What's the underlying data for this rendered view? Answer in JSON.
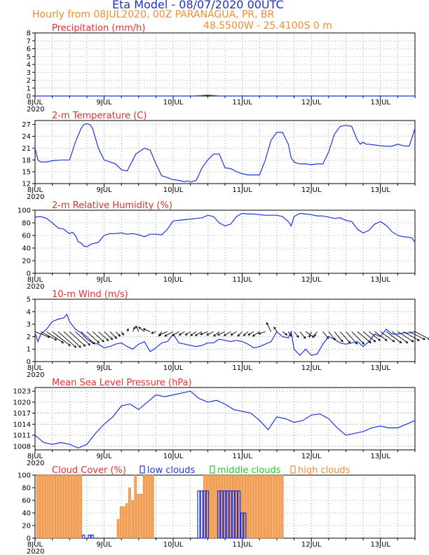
{
  "header": {
    "title": "Eta Model - 08/07/2020 00UTC",
    "subtitle": "Hourly from 08JUL2020, 00Z  PARANAGUA, PR, BR",
    "location": "48.5500W - 25.4100S       0  m"
  },
  "colors": {
    "title": "#2030c0",
    "orange": "#f08c30",
    "red": "#e03030",
    "blue": "#1a35e0",
    "black": "#000000"
  },
  "x_ticks": [
    "8JUL",
    "9JUL",
    "10JUL",
    "11JUL",
    "12JUL",
    "13JUL"
  ],
  "x_year": "2020",
  "chart_data": [
    {
      "type": "line",
      "title": "Precipitation (mm/h)",
      "ylim": [
        0,
        8
      ],
      "yticks": [
        "0",
        "1",
        "2",
        "3",
        "4",
        "5",
        "6",
        "7",
        "8"
      ],
      "x": [
        0,
        12,
        24,
        48,
        55,
        58,
        60,
        62,
        64,
        66,
        72,
        96,
        120,
        132
      ],
      "values": [
        0,
        0,
        0,
        0,
        0,
        0.05,
        0.12,
        0.05,
        0,
        0,
        0,
        0,
        0,
        0
      ]
    },
    {
      "type": "line",
      "title": "2-m Temperature (C)",
      "ylim": [
        12,
        28
      ],
      "yticks": [
        "12",
        "15",
        "18",
        "21",
        "24",
        "27"
      ],
      "x": [
        0,
        1,
        2,
        4,
        6,
        9,
        12,
        14,
        16,
        17,
        18,
        19,
        20,
        22,
        24,
        26,
        28,
        30,
        32,
        34,
        35,
        36,
        38,
        40,
        42,
        44,
        45,
        46,
        48,
        50,
        52,
        53,
        54,
        56,
        58,
        60,
        62,
        64,
        66,
        68,
        70,
        72,
        74,
        76,
        78,
        80,
        82,
        84,
        86,
        88,
        89,
        90,
        91,
        92,
        94,
        96,
        98,
        100,
        102,
        104,
        106,
        108,
        110,
        112,
        113,
        114,
        115,
        116,
        118,
        120,
        122,
        124,
        126,
        128,
        130,
        132
      ],
      "values": [
        21,
        18,
        17.5,
        17.5,
        17.8,
        18,
        18,
        22.5,
        26,
        27,
        27.2,
        27,
        26,
        21,
        18,
        17.5,
        17,
        15.5,
        15.2,
        18,
        19.5,
        20,
        21,
        20.5,
        17,
        14,
        13.8,
        13.5,
        13,
        12.8,
        12.5,
        12.7,
        12.4,
        12.8,
        16,
        18,
        19.5,
        19.5,
        16,
        15.8,
        15,
        14.5,
        14.2,
        14.2,
        14.2,
        18,
        23,
        25,
        25,
        22,
        18.5,
        17.5,
        17.2,
        17,
        17,
        16.8,
        17,
        17,
        20,
        24.5,
        26.5,
        26.8,
        26.5,
        23,
        22,
        22.5,
        22,
        22,
        21.8,
        21.6,
        21.5,
        21.5,
        22,
        21.6,
        21.5,
        26
      ]
    },
    {
      "type": "line",
      "title": "2-m Relative Humidity (%)",
      "ylim": [
        0,
        100
      ],
      "yticks": [
        "0",
        "20",
        "40",
        "60",
        "80",
        "100"
      ],
      "x": [
        0,
        2,
        4,
        6,
        8,
        10,
        11,
        12,
        13,
        14,
        15,
        16,
        17,
        18,
        19,
        20,
        22,
        24,
        26,
        28,
        30,
        32,
        34,
        36,
        38,
        40,
        42,
        44,
        46,
        48,
        50,
        52,
        54,
        56,
        58,
        60,
        62,
        64,
        66,
        68,
        70,
        72,
        74,
        76,
        78,
        80,
        82,
        84,
        86,
        88,
        89,
        90,
        92,
        94,
        96,
        98,
        100,
        102,
        104,
        106,
        108,
        110,
        112,
        114,
        116,
        118,
        120,
        122,
        124,
        126,
        128,
        130,
        131,
        132
      ],
      "values": [
        89,
        90,
        87,
        80,
        72,
        70,
        66,
        63,
        65,
        60,
        50,
        48,
        43,
        42,
        45,
        47,
        49,
        60,
        63,
        63,
        64,
        62,
        63,
        61,
        58,
        62,
        62,
        61,
        70,
        83,
        84,
        85,
        86,
        87,
        88,
        92,
        90,
        80,
        75,
        78,
        90,
        95,
        94,
        94,
        93,
        92,
        92,
        92,
        90,
        82,
        75,
        90,
        95,
        94,
        93,
        91,
        91,
        89,
        87,
        88,
        84,
        82,
        70,
        64,
        68,
        78,
        82,
        76,
        66,
        60,
        58,
        57,
        56,
        49
      ]
    },
    {
      "type": "line",
      "title": "10-m Wind (m/s)",
      "ylim": [
        0,
        5
      ],
      "yticks": [
        "0",
        "1",
        "2",
        "3",
        "4",
        "5"
      ],
      "x": [
        0,
        1,
        2,
        4,
        6,
        8,
        10,
        11,
        12,
        13,
        14,
        16,
        18,
        20,
        22,
        24,
        26,
        28,
        30,
        32,
        34,
        36,
        38,
        40,
        42,
        44,
        46,
        48,
        50,
        52,
        54,
        56,
        58,
        60,
        62,
        64,
        66,
        68,
        70,
        72,
        74,
        76,
        78,
        80,
        82,
        84,
        86,
        88,
        89,
        90,
        92,
        94,
        96,
        98,
        100,
        102,
        104,
        106,
        108,
        110,
        112,
        114,
        116,
        118,
        120,
        122,
        124,
        126,
        128,
        130,
        132
      ],
      "values": [
        2.3,
        1.6,
        2.2,
        2.6,
        3.2,
        3.4,
        3.5,
        3.8,
        3.2,
        2.9,
        2.6,
        2.3,
        1.8,
        1.5,
        1.4,
        1.1,
        1.2,
        1.4,
        1.5,
        1.2,
        1.0,
        1.4,
        1.6,
        0.8,
        1.1,
        1.5,
        1.6,
        2.2,
        1.5,
        1.4,
        1.3,
        1.2,
        1.3,
        1.5,
        1.5,
        1.8,
        1.7,
        1.6,
        1.7,
        1.6,
        1.4,
        1.1,
        1.2,
        1.4,
        1.6,
        2.4,
        2.0,
        1.9,
        2.4,
        1.0,
        0.5,
        1.0,
        0.5,
        0.6,
        1.4,
        2.0,
        1.8,
        1.5,
        1.4,
        1.5,
        1.6,
        1.2,
        1.6,
        2.2,
        2.0,
        2.6,
        2.2,
        2.2,
        2.3,
        2.3,
        2.4
      ],
      "barbs": {
        "x": [
          0,
          2,
          4,
          6,
          8,
          10,
          12,
          14,
          16,
          18,
          20,
          22,
          24,
          26,
          28,
          30,
          32,
          34,
          36,
          38,
          40,
          42,
          44,
          46,
          48,
          50,
          52,
          54,
          56,
          58,
          60,
          62,
          64,
          66,
          68,
          70,
          72,
          74,
          76,
          78,
          80,
          82,
          84,
          86,
          88,
          90,
          92,
          94,
          96,
          98,
          100,
          102,
          104,
          106,
          108,
          110,
          112,
          114,
          116,
          118,
          120,
          122,
          124,
          126,
          128,
          130,
          132
        ],
        "u": [
          2.6,
          2.8,
          3.0,
          3.2,
          3.2,
          3.0,
          2.8,
          2.6,
          2.4,
          2.2,
          2.0,
          1.8,
          1.5,
          1.2,
          0.8,
          0.4,
          0.2,
          0.3,
          -0.5,
          -1.0,
          -1.2,
          -0.8,
          -0.5,
          -1.5,
          -1.5,
          -1.2,
          -1.0,
          -0.9,
          -1.0,
          -1.2,
          -1.3,
          -1.2,
          -1.0,
          -1.3,
          -1.2,
          -1.0,
          -0.8,
          -0.8,
          -1.0,
          -1.2,
          -1.2,
          -0.8,
          -0.5,
          0.8,
          0.5,
          0.8,
          1.0,
          1.5,
          -0.4,
          -0.5,
          1.0,
          1.2,
          1.5,
          1.8,
          2.0,
          2.2,
          2.4,
          2.2,
          2.0,
          2.2,
          2.5,
          2.7,
          2.8,
          2.8,
          2.8,
          2.8,
          2.7
        ],
        "v": [
          -1.0,
          -1.5,
          -2.0,
          -2.5,
          -2.8,
          -2.8,
          -2.6,
          -2.4,
          -2.2,
          -2.0,
          -1.8,
          -1.6,
          -1.4,
          -1.2,
          -0.8,
          -0.6,
          0.5,
          0.8,
          1.0,
          0.8,
          0.5,
          -0.3,
          -0.8,
          -0.6,
          -0.8,
          -0.7,
          -0.6,
          -0.6,
          -0.7,
          -0.7,
          -0.5,
          -0.6,
          -0.8,
          -0.6,
          -0.7,
          -0.6,
          -0.8,
          -0.7,
          -0.6,
          -0.8,
          -0.4,
          1.6,
          0.8,
          -0.6,
          -0.8,
          -1.0,
          -1.2,
          -1.0,
          -1.0,
          -0.8,
          -1.2,
          -1.5,
          -1.8,
          -2.0,
          -2.2,
          -2.2,
          -2.0,
          -1.8,
          -1.6,
          -1.6,
          -1.8,
          -2.0,
          -2.0,
          -1.8,
          -1.6,
          -1.4,
          -1.4
        ]
      }
    },
    {
      "type": "line",
      "title": "Mean Sea Level Pressure (hPa)",
      "ylim": [
        1007,
        1024
      ],
      "yticks": [
        "1008",
        "1011",
        "1014",
        "1017",
        "1020",
        "1023"
      ],
      "x": [
        0,
        3,
        6,
        9,
        12,
        15,
        18,
        21,
        24,
        27,
        30,
        33,
        36,
        39,
        42,
        45,
        48,
        51,
        54,
        57,
        60,
        63,
        66,
        69,
        72,
        75,
        78,
        81,
        84,
        87,
        90,
        93,
        96,
        99,
        102,
        105,
        108,
        111,
        114,
        117,
        120,
        123,
        126,
        129,
        132
      ],
      "values": [
        1011,
        1009,
        1008.5,
        1009,
        1008.5,
        1007.5,
        1008.5,
        1011.5,
        1014,
        1016,
        1019,
        1019.5,
        1018,
        1020,
        1022,
        1021.5,
        1022,
        1022.5,
        1023,
        1021,
        1020,
        1020.5,
        1019.5,
        1018,
        1017.5,
        1017,
        1015,
        1012.5,
        1016,
        1015.5,
        1014.5,
        1015,
        1016.5,
        1016.8,
        1015.5,
        1013,
        1011,
        1011.5,
        1012,
        1013,
        1013.5,
        1013,
        1013,
        1014,
        1015
      ]
    },
    {
      "type": "bar",
      "title": "Cloud Cover (%)",
      "legend": [
        "low clouds",
        "middle clouds",
        "high clouds"
      ],
      "ylim": [
        0,
        100
      ],
      "yticks": [
        "0",
        "20",
        "40",
        "60",
        "80",
        "100"
      ],
      "series": [
        {
          "name": "high clouds",
          "x": [
            1,
            2,
            3,
            4,
            5,
            6,
            7,
            8,
            9,
            10,
            11,
            12,
            13,
            14,
            15,
            16,
            29,
            30,
            31,
            32,
            33,
            34,
            35,
            36,
            37,
            38,
            39,
            40,
            41,
            59,
            60,
            61,
            62,
            63,
            64,
            65,
            66,
            67,
            68,
            69,
            70,
            71,
            72,
            73,
            74,
            75,
            76,
            77,
            78,
            79,
            80,
            81,
            82,
            83,
            84,
            85,
            86
          ],
          "values": [
            100,
            100,
            100,
            100,
            100,
            100,
            100,
            100,
            100,
            100,
            100,
            100,
            100,
            100,
            100,
            100,
            30,
            50,
            50,
            55,
            80,
            60,
            100,
            70,
            70,
            100,
            100,
            100,
            100,
            100,
            100,
            100,
            100,
            100,
            100,
            100,
            100,
            100,
            100,
            100,
            100,
            100,
            100,
            100,
            100,
            100,
            100,
            100,
            100,
            100,
            100,
            100,
            100,
            100,
            100,
            100,
            100
          ]
        },
        {
          "name": "low clouds",
          "x": [
            17,
            19,
            20,
            57,
            58,
            59,
            60,
            64,
            65,
            66,
            67,
            68,
            69,
            70,
            71,
            72,
            73
          ],
          "values": [
            5,
            5,
            5,
            75,
            75,
            75,
            75,
            75,
            75,
            75,
            75,
            75,
            75,
            75,
            75,
            40,
            40
          ]
        }
      ]
    }
  ]
}
